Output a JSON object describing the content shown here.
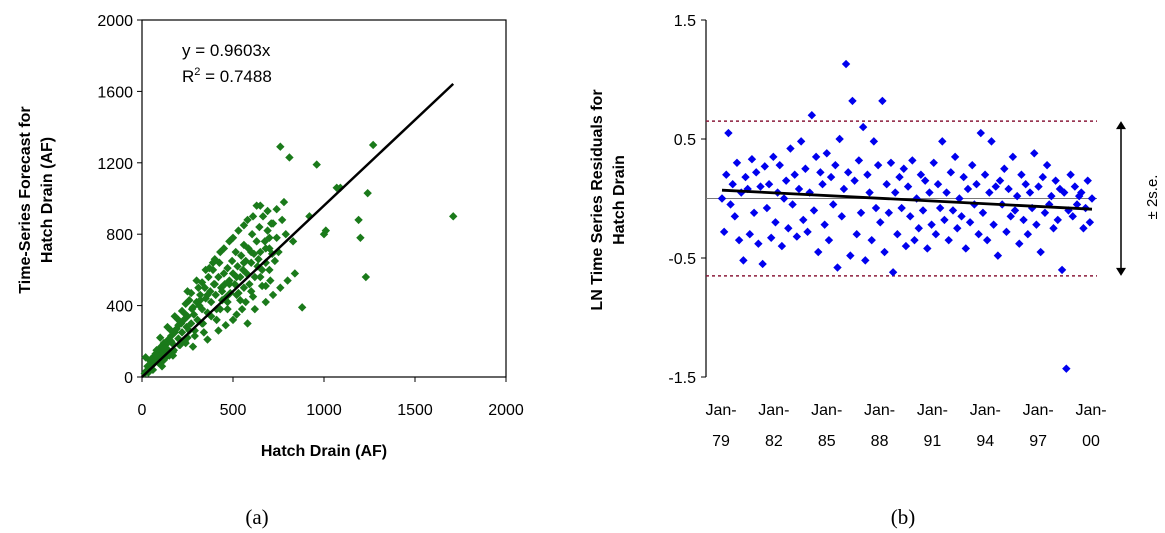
{
  "chart_data": [
    {
      "type": "scatter",
      "xlabel": "Hatch Drain (AF)",
      "ylabel": "Time-Series Forecast for Hatch Drain (AF)",
      "xlim": [
        0,
        2000
      ],
      "ylim": [
        0,
        2000
      ],
      "xticks": [
        "0",
        "500",
        "1000",
        "1500",
        "2000"
      ],
      "yticks": [
        "0",
        "400",
        "800",
        "1200",
        "1600",
        "2000"
      ],
      "equation": "y = 0.9603x",
      "r2_label": "R",
      "r2_sup": "2",
      "r2_value": " = 0.7488",
      "trendline": {
        "slope": 0.9603,
        "x_range": [
          0,
          1710
        ]
      },
      "point_color": "#1a7a1a",
      "caption": "(a)",
      "series": [
        {
          "points": [
            [
              15,
              20
            ],
            [
              25,
              35
            ],
            [
              30,
              60
            ],
            [
              40,
              45
            ],
            [
              45,
              90
            ],
            [
              55,
              70
            ],
            [
              60,
              110
            ],
            [
              70,
              80
            ],
            [
              75,
              130
            ],
            [
              85,
              100
            ],
            [
              90,
              150
            ],
            [
              100,
              120
            ],
            [
              105,
              170
            ],
            [
              115,
              140
            ],
            [
              120,
              95
            ],
            [
              130,
              180
            ],
            [
              135,
              160
            ],
            [
              145,
              210
            ],
            [
              150,
              120
            ],
            [
              160,
              230
            ],
            [
              165,
              190
            ],
            [
              175,
              150
            ],
            [
              180,
              250
            ],
            [
              190,
              270
            ],
            [
              200,
              215
            ],
            [
              205,
              180
            ],
            [
              215,
              300
            ],
            [
              220,
              250
            ],
            [
              230,
              320
            ],
            [
              235,
              200
            ],
            [
              245,
              280
            ],
            [
              250,
              340
            ],
            [
              260,
              260
            ],
            [
              270,
              300
            ],
            [
              275,
              380
            ],
            [
              285,
              350
            ],
            [
              290,
              230
            ],
            [
              300,
              420
            ],
            [
              305,
              320
            ],
            [
              315,
              400
            ],
            [
              320,
              460
            ],
            [
              330,
              380
            ],
            [
              335,
              300
            ],
            [
              345,
              500
            ],
            [
              350,
              440
            ],
            [
              360,
              360
            ],
            [
              365,
              560
            ],
            [
              375,
              480
            ],
            [
              380,
              420
            ],
            [
              390,
              600
            ],
            [
              395,
              520
            ],
            [
              405,
              460
            ],
            [
              410,
              380
            ],
            [
              420,
              560
            ],
            [
              425,
              640
            ],
            [
              435,
              500
            ],
            [
              440,
              430
            ],
            [
              450,
              580
            ],
            [
              455,
              520
            ],
            [
              465,
              450
            ],
            [
              470,
              610
            ],
            [
              480,
              540
            ],
            [
              485,
              470
            ],
            [
              495,
              650
            ],
            [
              500,
              580
            ],
            [
              510,
              520
            ],
            [
              515,
              700
            ],
            [
              525,
              620
            ],
            [
              530,
              470
            ],
            [
              540,
              560
            ],
            [
              545,
              680
            ],
            [
              555,
              600
            ],
            [
              560,
              740
            ],
            [
              570,
              650
            ],
            [
              575,
              580
            ],
            [
              585,
              720
            ],
            [
              590,
              520
            ],
            [
              600,
              640
            ],
            [
              605,
              800
            ],
            [
              615,
              690
            ],
            [
              620,
              560
            ],
            [
              630,
              760
            ],
            [
              635,
              620
            ],
            [
              645,
              840
            ],
            [
              650,
              700
            ],
            [
              660,
              600
            ],
            [
              665,
              900
            ],
            [
              675,
              760
            ],
            [
              680,
              640
            ],
            [
              690,
              820
            ],
            [
              700,
              720
            ],
            [
              705,
              540
            ],
            [
              715,
              690
            ],
            [
              720,
              860
            ],
            [
              730,
              650
            ],
            [
              740,
              780
            ],
            [
              750,
              700
            ],
            [
              760,
              1290
            ],
            [
              770,
              880
            ],
            [
              790,
              800
            ],
            [
              810,
              1230
            ],
            [
              830,
              760
            ],
            [
              880,
              390
            ],
            [
              920,
              900
            ],
            [
              960,
              1190
            ],
            [
              1000,
              800
            ],
            [
              1010,
              820
            ],
            [
              1070,
              1060
            ],
            [
              1090,
              1060
            ],
            [
              1190,
              880
            ],
            [
              1200,
              780
            ],
            [
              1230,
              560
            ],
            [
              1240,
              1030
            ],
            [
              1270,
              1300
            ],
            [
              1710,
              900
            ],
            [
              20,
              110
            ],
            [
              60,
              40
            ],
            [
              110,
              60
            ],
            [
              170,
              120
            ],
            [
              240,
              190
            ],
            [
              280,
              170
            ],
            [
              340,
              250
            ],
            [
              410,
              320
            ],
            [
              470,
              380
            ],
            [
              540,
              430
            ],
            [
              600,
              480
            ],
            [
              660,
              510
            ],
            [
              350,
              600
            ],
            [
              300,
              540
            ],
            [
              250,
              480
            ],
            [
              390,
              640
            ],
            [
              430,
              700
            ],
            [
              480,
              760
            ],
            [
              530,
              820
            ],
            [
              580,
              880
            ],
            [
              630,
              960
            ],
            [
              460,
              290
            ],
            [
              520,
              350
            ],
            [
              570,
              420
            ],
            [
              610,
              450
            ],
            [
              680,
              510
            ],
            [
              420,
              260
            ],
            [
              360,
              210
            ],
            [
              200,
              320
            ],
            [
              160,
              260
            ],
            [
              120,
              190
            ],
            [
              80,
              150
            ],
            [
              100,
              220
            ],
            [
              140,
              280
            ],
            [
              180,
              340
            ],
            [
              240,
              410
            ],
            [
              270,
              470
            ],
            [
              310,
              500
            ],
            [
              220,
              370
            ],
            [
              260,
              430
            ],
            [
              330,
              530
            ],
            [
              370,
              610
            ],
            [
              400,
              660
            ],
            [
              450,
              720
            ],
            [
              500,
              780
            ],
            [
              560,
              850
            ],
            [
              610,
              900
            ],
            [
              650,
              960
            ],
            [
              690,
              930
            ],
            [
              710,
              860
            ],
            [
              740,
              940
            ],
            [
              780,
              980
            ],
            [
              600,
              700
            ],
            [
              640,
              660
            ],
            [
              700,
              600
            ],
            [
              650,
              560
            ],
            [
              560,
              500
            ],
            [
              520,
              460
            ],
            [
              470,
              420
            ],
            [
              430,
              380
            ],
            [
              380,
              340
            ],
            [
              330,
              300
            ],
            [
              290,
              260
            ],
            [
              250,
              220
            ],
            [
              210,
              180
            ],
            [
              170,
              140
            ],
            [
              130,
              110
            ],
            [
              90,
              80
            ],
            [
              50,
              60
            ],
            [
              35,
              25
            ],
            [
              550,
              380
            ],
            [
              580,
              300
            ],
            [
              500,
              320
            ],
            [
              620,
              380
            ],
            [
              680,
              420
            ],
            [
              720,
              460
            ],
            [
              760,
              500
            ],
            [
              800,
              540
            ],
            [
              840,
              580
            ],
            [
              680,
              720
            ],
            [
              700,
              780
            ],
            [
              560,
              640
            ],
            [
              520,
              560
            ],
            [
              480,
              520
            ],
            [
              440,
              480
            ],
            [
              400,
              520
            ],
            [
              360,
              460
            ],
            [
              320,
              430
            ],
            [
              280,
              390
            ],
            [
              240,
              350
            ],
            [
              200,
              290
            ],
            [
              160,
              200
            ],
            [
              120,
              160
            ],
            [
              80,
              120
            ],
            [
              50,
              100
            ]
          ]
        }
      ]
    },
    {
      "type": "scatter",
      "xlabel": "",
      "ylabel": "LN Time Series Residuals for Hatch Drain",
      "ylim": [
        -1.5,
        1.5
      ],
      "yticks": [
        "1.5",
        "0.5",
        "-0.5",
        "-1.5"
      ],
      "xtick_labels": [
        [
          "Jan-",
          "79"
        ],
        [
          "Jan-",
          "82"
        ],
        [
          "Jan-",
          "85"
        ],
        [
          "Jan-",
          "88"
        ],
        [
          "Jan-",
          "91"
        ],
        [
          "Jan-",
          "94"
        ],
        [
          "Jan-",
          "97"
        ],
        [
          "Jan-",
          "00"
        ]
      ],
      "x_range_years": [
        1979,
        2000
      ],
      "band": {
        "upper": 0.65,
        "lower": -0.65,
        "label": "± 2s.e."
      },
      "trendline": {
        "start": 0.07,
        "end": -0.09
      },
      "point_color": "#0000ee",
      "caption": "(b)",
      "residuals": [
        0.0,
        -0.28,
        0.2,
        0.55,
        -0.05,
        0.12,
        -0.15,
        0.3,
        -0.35,
        0.05,
        -0.52,
        0.18,
        0.08,
        -0.3,
        0.33,
        -0.12,
        0.22,
        -0.38,
        0.1,
        -0.55,
        0.27,
        -0.08,
        0.12,
        -0.33,
        0.35,
        -0.2,
        0.05,
        0.28,
        -0.4,
        0.0,
        0.15,
        -0.25,
        0.42,
        -0.05,
        0.2,
        -0.32,
        0.08,
        0.48,
        -0.18,
        0.25,
        -0.28,
        0.05,
        0.7,
        -0.1,
        0.35,
        -0.45,
        0.22,
        0.12,
        -0.22,
        0.38,
        -0.35,
        0.18,
        -0.05,
        0.28,
        -0.58,
        0.5,
        -0.15,
        0.08,
        1.13,
        0.22,
        -0.48,
        0.82,
        0.15,
        -0.3,
        0.32,
        -0.12,
        0.6,
        -0.52,
        0.2,
        0.05,
        -0.35,
        0.48,
        -0.08,
        0.28,
        -0.2,
        0.82,
        -0.45,
        0.12,
        -0.12,
        0.3,
        -0.62,
        0.05,
        -0.3,
        0.18,
        -0.08,
        0.25,
        -0.4,
        0.1,
        -0.15,
        0.32,
        -0.35,
        0.0,
        -0.25,
        0.2,
        -0.1,
        0.15,
        -0.42,
        0.05,
        -0.22,
        0.3,
        -0.3,
        0.12,
        -0.08,
        0.48,
        -0.18,
        0.05,
        -0.35,
        0.22,
        -0.1,
        0.35,
        -0.25,
        0.0,
        -0.15,
        0.18,
        -0.42,
        0.08,
        -0.2,
        0.28,
        -0.05,
        0.12,
        -0.3,
        0.55,
        -0.12,
        0.2,
        -0.35,
        0.05,
        0.48,
        -0.22,
        0.1,
        -0.48,
        0.15,
        -0.05,
        0.25,
        -0.28,
        0.08,
        -0.15,
        0.35,
        -0.1,
        0.02,
        -0.38,
        0.2,
        -0.18,
        0.12,
        -0.3,
        0.05,
        -0.08,
        0.38,
        -0.22,
        0.1,
        -0.45,
        0.18,
        -0.12,
        0.28,
        -0.05,
        0.02,
        -0.25,
        0.15,
        -0.18,
        0.08,
        -0.6,
        0.05,
        -1.43,
        -0.1,
        0.2,
        -0.15,
        0.1,
        -0.05,
        0.02,
        0.05,
        -0.25,
        -0.08,
        0.15,
        -0.2,
        0.0
      ]
    }
  ]
}
